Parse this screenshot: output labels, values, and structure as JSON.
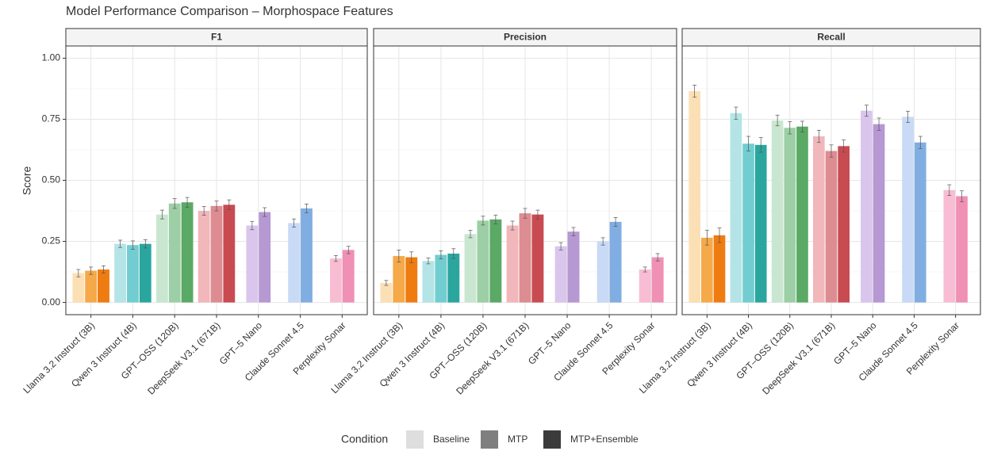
{
  "chart_data": {
    "type": "bar",
    "title": "Model Performance Comparison – Morphospace Features",
    "ylabel": "Score",
    "ylim": [
      -0.05,
      1.05
    ],
    "yticks": [
      {
        "value": 0,
        "label": "0.00"
      },
      {
        "value": 0.25,
        "label": "0.25"
      },
      {
        "value": 0.5,
        "label": "0.50"
      },
      {
        "value": 0.75,
        "label": "0.75"
      },
      {
        "value": 1,
        "label": "1.00"
      }
    ],
    "y_minor_ticks": [
      0.125,
      0.375,
      0.625,
      0.875
    ],
    "grid": true,
    "legend": {
      "title": "Condition",
      "position": "bottom"
    },
    "categories": [
      "Llama 3.2 Instruct (3B)",
      "Qwen 3 Instruct (4B)",
      "GPT–OSS (120B)",
      "DeepSeek V3.1 (671B)",
      "GPT–5 Nano",
      "Claude Sonnet 4.5",
      "Perplexity Sonar"
    ],
    "series": [
      {
        "name": "Baseline",
        "color": "#dedede"
      },
      {
        "name": "MTP",
        "color": "#7f7f7f"
      },
      {
        "name": "MTP+Ensemble",
        "color": "#3b3b3b"
      }
    ],
    "bar_colors": [
      [
        "#fbe0b6",
        "#f6a948",
        "#ef7c10"
      ],
      [
        "#b4e4e6",
        "#72cdd0",
        "#2aa69f"
      ],
      [
        "#c9e7d0",
        "#9ccfa5",
        "#5aa965"
      ],
      [
        "#f1b7ba",
        "#dd8c91",
        "#c84b51"
      ],
      [
        "#dac5ec",
        "#b698d3",
        "#8e66bb"
      ],
      [
        "#c8daf6",
        "#80aee2",
        "#4a86d0"
      ],
      [
        "#f8bdd3",
        "#ef90b4",
        "#e05a8e"
      ]
    ],
    "facets": [
      {
        "title": "F1",
        "series": [
          {
            "values": [
              0.12,
              0.24,
              0.36,
              0.375,
              0.315,
              0.325,
              0.18
            ],
            "errors": [
              0.015,
              0.015,
              0.018,
              0.018,
              0.017,
              0.017,
              0.012
            ]
          },
          {
            "values": [
              0.13,
              0.235,
              0.405,
              0.395,
              0.37,
              0.385,
              0.215
            ],
            "errors": [
              0.015,
              0.017,
              0.02,
              0.02,
              0.018,
              0.018,
              0.015
            ]
          },
          {
            "values": [
              0.135,
              0.24,
              0.41,
              0.4,
              null,
              null,
              null
            ],
            "errors": [
              0.015,
              0.017,
              0.02,
              0.02,
              null,
              null,
              null
            ]
          }
        ]
      },
      {
        "title": "Precision",
        "series": [
          {
            "values": [
              0.08,
              0.17,
              0.28,
              0.315,
              0.23,
              0.25,
              0.135
            ],
            "errors": [
              0.01,
              0.012,
              0.015,
              0.018,
              0.015,
              0.015,
              0.01
            ]
          },
          {
            "values": [
              0.19,
              0.195,
              0.335,
              0.365,
              0.29,
              0.33,
              0.185
            ],
            "errors": [
              0.025,
              0.017,
              0.018,
              0.02,
              0.017,
              0.018,
              0.015
            ]
          },
          {
            "values": [
              0.185,
              0.2,
              0.34,
              0.36,
              null,
              null,
              null
            ],
            "errors": [
              0.022,
              0.02,
              0.018,
              0.018,
              null,
              null,
              null
            ]
          }
        ]
      },
      {
        "title": "Recall",
        "series": [
          {
            "values": [
              0.865,
              0.775,
              0.745,
              0.68,
              0.785,
              0.76,
              0.46
            ],
            "errors": [
              0.025,
              0.025,
              0.022,
              0.025,
              0.023,
              0.023,
              0.022
            ]
          },
          {
            "values": [
              0.265,
              0.65,
              0.715,
              0.62,
              0.73,
              0.655,
              0.435
            ],
            "errors": [
              0.03,
              0.03,
              0.025,
              0.025,
              0.025,
              0.025,
              0.022
            ]
          },
          {
            "values": [
              0.275,
              0.645,
              0.72,
              0.64,
              null,
              null,
              null
            ],
            "errors": [
              0.03,
              0.03,
              0.022,
              0.025,
              null,
              null,
              null
            ]
          }
        ]
      }
    ]
  }
}
